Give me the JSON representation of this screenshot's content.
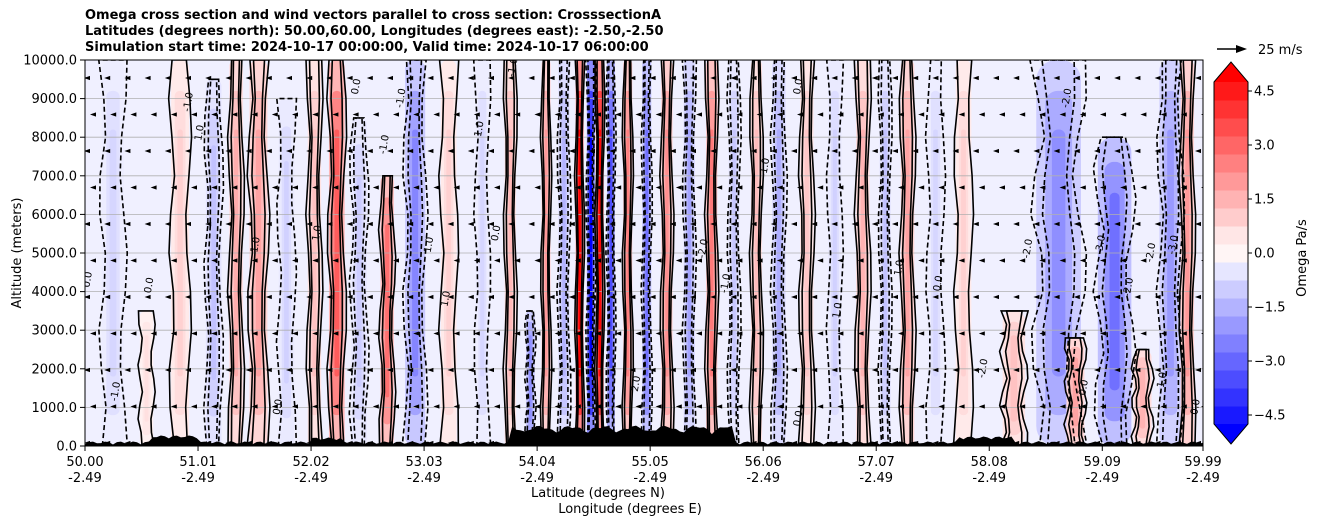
{
  "chart_data": {
    "type": "contour",
    "title_lines": [
      "Omega cross section and wind vectors parallel to cross section: CrosssectionA",
      "Latitudes (degrees north): 50.00,60.00, Longitudes (degrees east): -2.50,-2.50",
      "Simulation start time: 2024-10-17 00:00:00, Valid time: 2024-10-17 06:00:00"
    ],
    "xlabel": "Latitude (degrees N)",
    "xlabel2": "Longitude (degrees E)",
    "ylabel": "Altitude (meters)",
    "xlim": [
      50.0,
      59.99
    ],
    "ylim": [
      0,
      10000
    ],
    "grid": "horizontal",
    "x_ticks": [
      {
        "lat": 50.0,
        "label": "50.00",
        "sub": "-2.49"
      },
      {
        "lat": 51.01,
        "label": "51.01",
        "sub": "-2.49"
      },
      {
        "lat": 52.02,
        "label": "52.02",
        "sub": "-2.49"
      },
      {
        "lat": 53.03,
        "label": "53.03",
        "sub": "-2.49"
      },
      {
        "lat": 54.04,
        "label": "54.04",
        "sub": "-2.49"
      },
      {
        "lat": 55.05,
        "label": "55.05",
        "sub": "-2.49"
      },
      {
        "lat": 56.06,
        "label": "56.06",
        "sub": "-2.49"
      },
      {
        "lat": 57.07,
        "label": "57.07",
        "sub": "-2.49"
      },
      {
        "lat": 58.08,
        "label": "58.08",
        "sub": "-2.49"
      },
      {
        "lat": 59.09,
        "label": "59.09",
        "sub": "-2.49"
      },
      {
        "lat": 59.99,
        "label": "59.99",
        "sub": "-2.49"
      }
    ],
    "y_ticks": [
      {
        "value": 0,
        "label": "0.0"
      },
      {
        "value": 1000,
        "label": "1000.0"
      },
      {
        "value": 2000,
        "label": "2000.0"
      },
      {
        "value": 3000,
        "label": "3000.0"
      },
      {
        "value": 4000,
        "label": "4000.0"
      },
      {
        "value": 5000,
        "label": "5000.0"
      },
      {
        "value": 6000,
        "label": "6000.0"
      },
      {
        "value": 7000,
        "label": "7000.0"
      },
      {
        "value": 8000,
        "label": "8000.0"
      },
      {
        "value": 9000,
        "label": "9000.0"
      },
      {
        "value": 10000,
        "label": "10000.0"
      }
    ],
    "colorbar": {
      "label": "Omega Pa/s",
      "range": [
        -5.25,
        5.25
      ],
      "step": 0.5,
      "extend": "both",
      "ticks": [
        {
          "value": 4.5,
          "label": "4.5"
        },
        {
          "value": 3.0,
          "label": "3.0"
        },
        {
          "value": 1.5,
          "label": "1.5"
        },
        {
          "value": 0.0,
          "label": "0.0"
        },
        {
          "value": -1.5,
          "label": "−1.5"
        },
        {
          "value": -3.0,
          "label": "−3.0"
        },
        {
          "value": -4.5,
          "label": "−4.5"
        }
      ]
    },
    "quiver_key": {
      "label": "25 m/s"
    },
    "omega_bands": [
      {
        "lat": 50.25,
        "width": 0.1,
        "omega": -0.8,
        "top": 10000
      },
      {
        "lat": 50.55,
        "width": 0.06,
        "omega": 0.6,
        "top": 3500
      },
      {
        "lat": 50.85,
        "width": 0.08,
        "omega": 0.9,
        "top": 10000
      },
      {
        "lat": 51.15,
        "width": 0.07,
        "omega": -1.2,
        "top": 9500
      },
      {
        "lat": 51.35,
        "width": 0.06,
        "omega": 1.6,
        "top": 10000
      },
      {
        "lat": 51.55,
        "width": 0.08,
        "omega": 1.8,
        "top": 10000
      },
      {
        "lat": 51.8,
        "width": 0.07,
        "omega": -0.9,
        "top": 9000
      },
      {
        "lat": 52.05,
        "width": 0.06,
        "omega": 1.2,
        "top": 10000
      },
      {
        "lat": 52.25,
        "width": 0.07,
        "omega": 3.2,
        "top": 10000
      },
      {
        "lat": 52.45,
        "width": 0.07,
        "omega": -1.0,
        "top": 8500
      },
      {
        "lat": 52.7,
        "width": 0.06,
        "omega": 2.8,
        "top": 7000
      },
      {
        "lat": 52.95,
        "width": 0.09,
        "omega": -2.4,
        "top": 10000
      },
      {
        "lat": 53.25,
        "width": 0.07,
        "omega": 0.9,
        "top": 10000
      },
      {
        "lat": 53.55,
        "width": 0.06,
        "omega": -0.8,
        "top": 10000
      },
      {
        "lat": 53.8,
        "width": 0.05,
        "omega": 1.4,
        "top": 10000
      },
      {
        "lat": 53.98,
        "width": 0.04,
        "omega": -2.2,
        "top": 3500
      },
      {
        "lat": 54.12,
        "width": 0.04,
        "omega": 2.0,
        "top": 10000
      },
      {
        "lat": 54.28,
        "width": 0.05,
        "omega": -1.5,
        "top": 10000
      },
      {
        "lat": 54.42,
        "width": 0.025,
        "omega": 5.0,
        "top": 10000
      },
      {
        "lat": 54.52,
        "width": 0.02,
        "omega": -5.0,
        "top": 10000
      },
      {
        "lat": 54.6,
        "width": 0.02,
        "omega": 4.8,
        "top": 10000
      },
      {
        "lat": 54.7,
        "width": 0.03,
        "omega": -3.5,
        "top": 10000
      },
      {
        "lat": 54.85,
        "width": 0.04,
        "omega": 2.5,
        "top": 10000
      },
      {
        "lat": 55.02,
        "width": 0.04,
        "omega": -2.8,
        "top": 10000
      },
      {
        "lat": 55.2,
        "width": 0.05,
        "omega": 2.2,
        "top": 10000
      },
      {
        "lat": 55.4,
        "width": 0.05,
        "omega": -1.8,
        "top": 10000
      },
      {
        "lat": 55.6,
        "width": 0.05,
        "omega": 2.6,
        "top": 10000
      },
      {
        "lat": 55.8,
        "width": 0.05,
        "omega": -1.1,
        "top": 10000
      },
      {
        "lat": 56.0,
        "width": 0.05,
        "omega": 1.3,
        "top": 10000
      },
      {
        "lat": 56.2,
        "width": 0.06,
        "omega": -1.6,
        "top": 10000
      },
      {
        "lat": 56.45,
        "width": 0.06,
        "omega": 1.1,
        "top": 10000
      },
      {
        "lat": 56.7,
        "width": 0.06,
        "omega": -0.9,
        "top": 10000
      },
      {
        "lat": 56.95,
        "width": 0.06,
        "omega": 1.5,
        "top": 10000
      },
      {
        "lat": 57.15,
        "width": 0.05,
        "omega": -1.2,
        "top": 10000
      },
      {
        "lat": 57.35,
        "width": 0.06,
        "omega": 1.8,
        "top": 10000
      },
      {
        "lat": 57.6,
        "width": 0.07,
        "omega": -0.8,
        "top": 10000
      },
      {
        "lat": 57.85,
        "width": 0.07,
        "omega": 0.9,
        "top": 10000
      },
      {
        "lat": 58.3,
        "width": 0.1,
        "omega": 1.2,
        "top": 3500
      },
      {
        "lat": 58.7,
        "width": 0.2,
        "omega": -2.2,
        "top": 10000
      },
      {
        "lat": 58.85,
        "width": 0.08,
        "omega": 1.8,
        "top": 2800
      },
      {
        "lat": 59.2,
        "width": 0.15,
        "omega": -2.8,
        "top": 8000
      },
      {
        "lat": 59.45,
        "width": 0.08,
        "omega": 1.5,
        "top": 2500
      },
      {
        "lat": 59.7,
        "width": 0.1,
        "omega": -2.0,
        "top": 10000
      },
      {
        "lat": 59.85,
        "width": 0.06,
        "omega": 2.0,
        "top": 10000
      }
    ],
    "contour_labels": [
      {
        "lat": 50.05,
        "alt": 4300,
        "label": "0.0"
      },
      {
        "lat": 50.6,
        "alt": 4150,
        "label": "0.0"
      },
      {
        "lat": 50.95,
        "alt": 8900,
        "label": "-1.0"
      },
      {
        "lat": 51.05,
        "alt": 8100,
        "label": "1.0"
      },
      {
        "lat": 51.55,
        "alt": 5200,
        "label": "1.0"
      },
      {
        "lat": 52.1,
        "alt": 5500,
        "label": "1.0"
      },
      {
        "lat": 52.45,
        "alt": 9300,
        "label": "0.0"
      },
      {
        "lat": 52.7,
        "alt": 7800,
        "label": "-1.0"
      },
      {
        "lat": 52.85,
        "alt": 9000,
        "label": "-1.0"
      },
      {
        "lat": 53.1,
        "alt": 5200,
        "label": "1.0"
      },
      {
        "lat": 53.25,
        "alt": 3800,
        "label": "1.0"
      },
      {
        "lat": 53.55,
        "alt": 8200,
        "label": "1.0"
      },
      {
        "lat": 53.7,
        "alt": 5500,
        "label": "0.0"
      },
      {
        "lat": 53.85,
        "alt": 9800,
        "label": "-1.0"
      },
      {
        "lat": 55.55,
        "alt": 5100,
        "label": "-2.0"
      },
      {
        "lat": 55.75,
        "alt": 4200,
        "label": "-1.0"
      },
      {
        "lat": 56.1,
        "alt": 7200,
        "label": "-1.0"
      },
      {
        "lat": 56.4,
        "alt": 9300,
        "label": "0.0"
      },
      {
        "lat": 56.75,
        "alt": 3500,
        "label": "1.0"
      },
      {
        "lat": 57.3,
        "alt": 4600,
        "label": "1.0"
      },
      {
        "lat": 57.65,
        "alt": 4200,
        "label": "0.0"
      },
      {
        "lat": 58.05,
        "alt": 2000,
        "label": "-2.0"
      },
      {
        "lat": 58.45,
        "alt": 5100,
        "label": "-2.0"
      },
      {
        "lat": 58.8,
        "alt": 9000,
        "label": "-2.0"
      },
      {
        "lat": 59.1,
        "alt": 5200,
        "label": "-3.0"
      },
      {
        "lat": 59.35,
        "alt": 4100,
        "label": "-2.0"
      },
      {
        "lat": 59.55,
        "alt": 5000,
        "label": "-2.0"
      },
      {
        "lat": 59.75,
        "alt": 5200,
        "label": "-3.0"
      },
      {
        "lat": 59.65,
        "alt": 1700,
        "label": "1.0"
      },
      {
        "lat": 59.95,
        "alt": 1000,
        "label": "0.0"
      },
      {
        "lat": 58.95,
        "alt": 1500,
        "label": "0.0"
      },
      {
        "lat": 56.4,
        "alt": 700,
        "label": "0.0"
      },
      {
        "lat": 54.95,
        "alt": 1600,
        "label": "2.0"
      },
      {
        "lat": 51.75,
        "alt": 1000,
        "label": "0.0"
      },
      {
        "lat": 50.3,
        "alt": 1400,
        "label": "-1.0"
      }
    ]
  }
}
